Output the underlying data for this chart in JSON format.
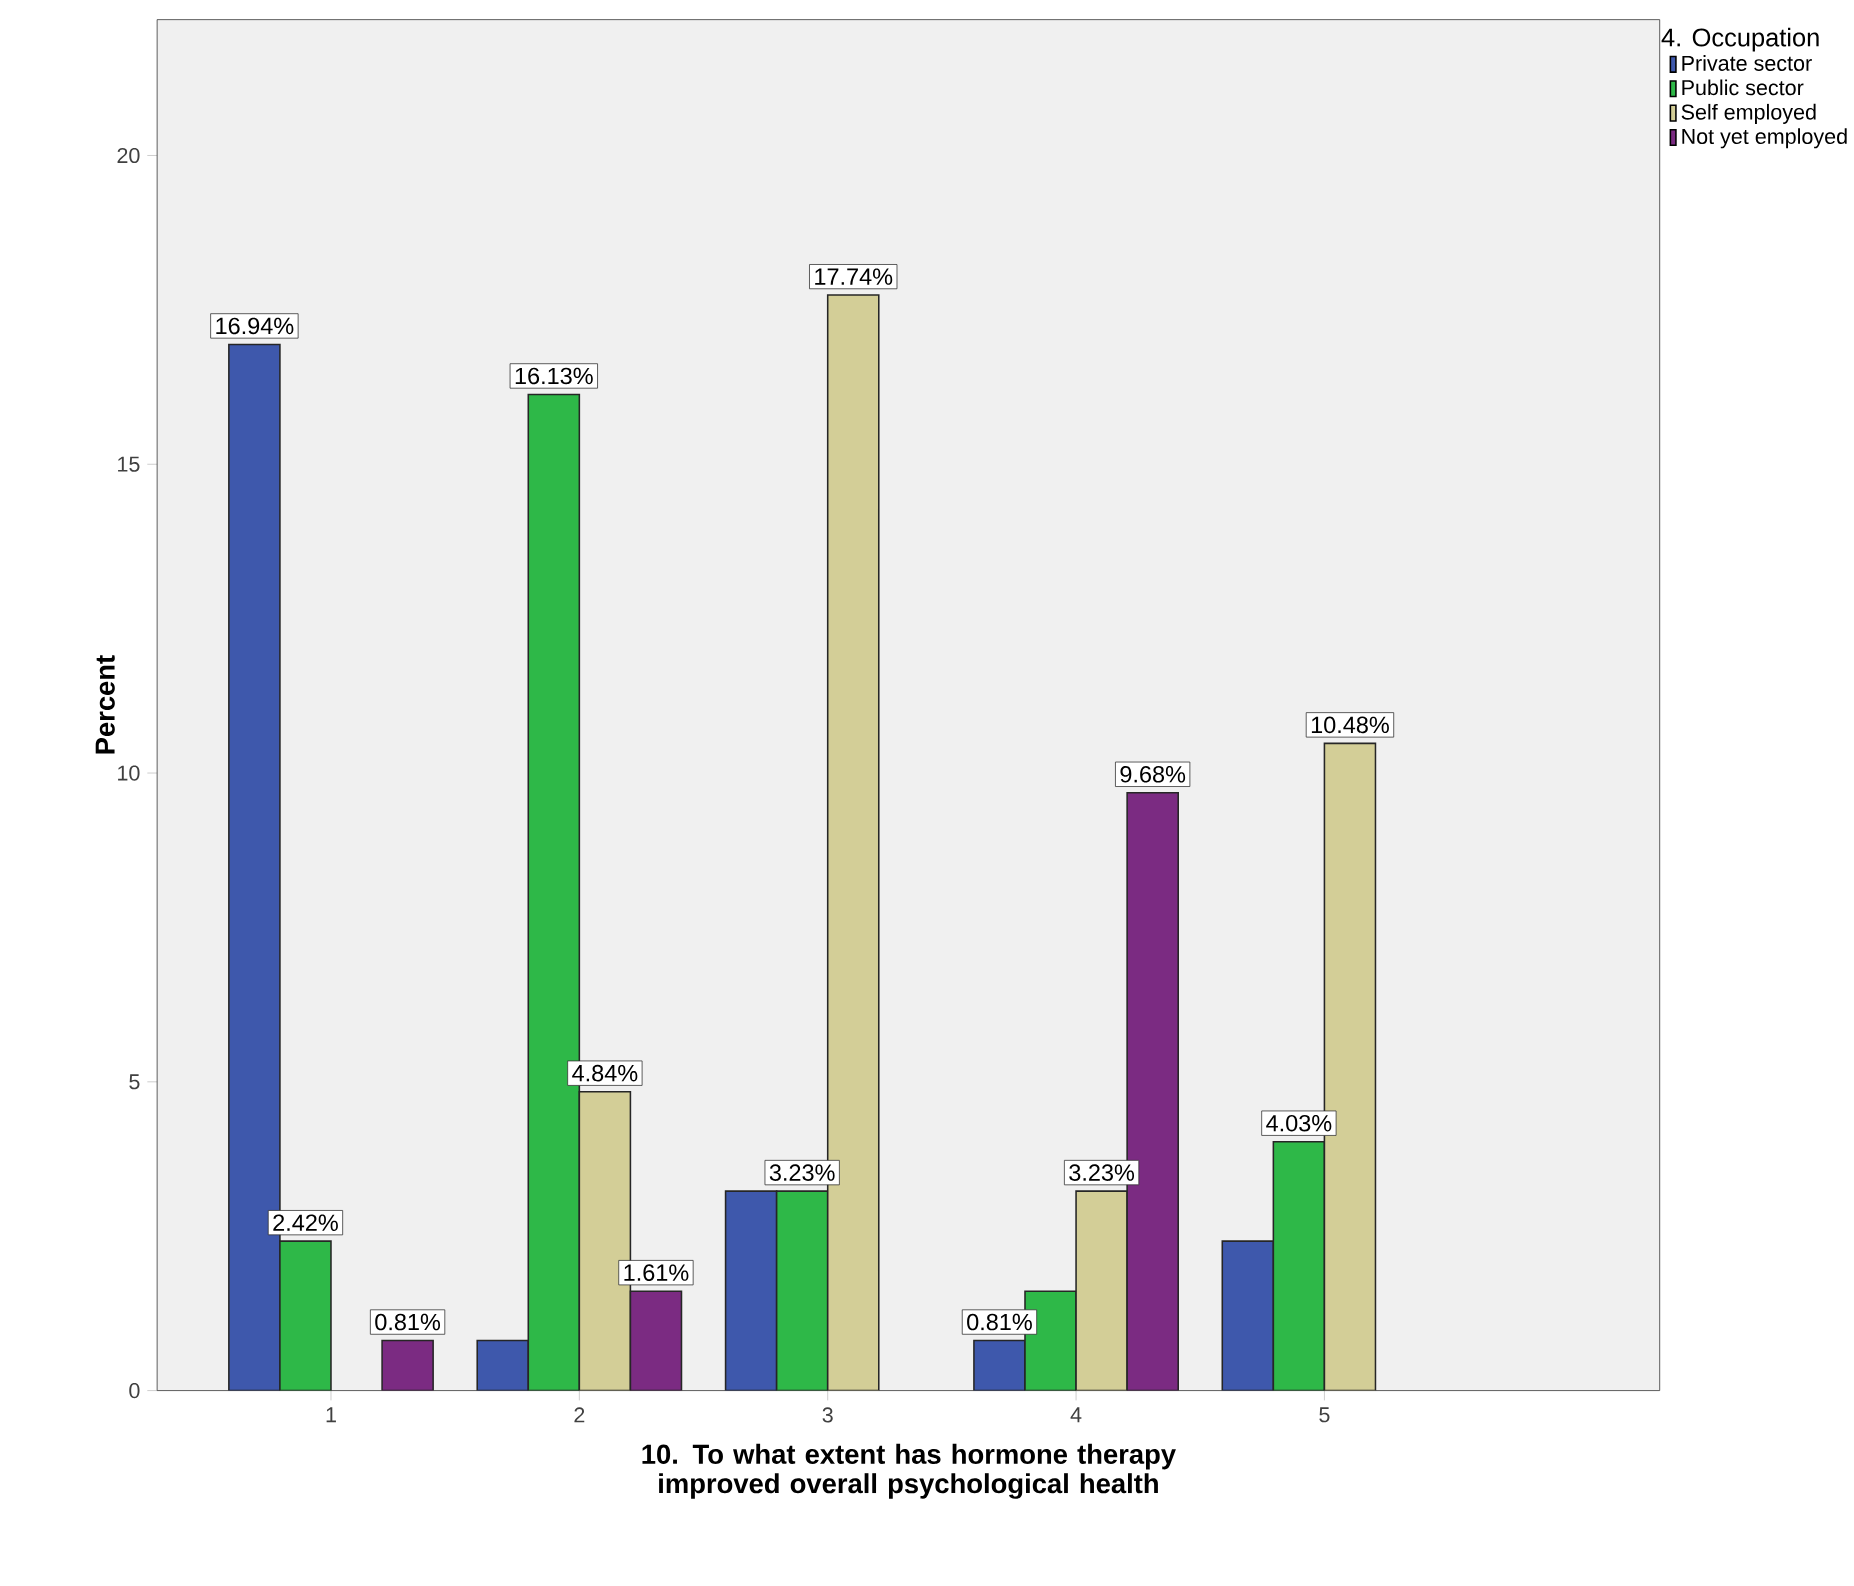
{
  "chart_data": {
    "type": "bar",
    "xlabel": "10. To what extent has hormone therapy improved overall psychological health",
    "ylabel": "Percent",
    "legend_title": "4. Occupation",
    "legend": "top right",
    "categories": [
      "1",
      "2",
      "3",
      "4",
      "5"
    ],
    "ylim": [
      0,
      22.2
    ],
    "yticks": [
      0,
      5,
      10,
      15,
      20
    ],
    "series": [
      {
        "name": "Private sector",
        "color": "#3e58ac",
        "values": [
          16.94,
          0.81,
          3.23,
          0.81,
          2.42
        ],
        "value_labels": [
          "16.94%",
          null,
          null,
          "0.81%",
          null
        ]
      },
      {
        "name": "Public sector",
        "color": "#2eb848",
        "values": [
          2.42,
          16.13,
          3.23,
          1.61,
          4.03
        ],
        "value_labels": [
          "2.42%",
          "16.13%",
          "3.23%",
          null,
          "4.03%"
        ]
      },
      {
        "name": "Self employed",
        "color": "#d3ce97",
        "values": [
          null,
          4.84,
          17.74,
          3.23,
          10.48
        ],
        "value_labels": [
          null,
          "4.84%",
          "17.74%",
          "3.23%",
          "10.48%"
        ]
      },
      {
        "name": "Not yet employed",
        "color": "#7b2b82",
        "values": [
          0.81,
          1.61,
          null,
          9.68,
          null
        ],
        "value_labels": [
          "0.81%",
          "1.61%",
          null,
          "9.68%",
          null
        ]
      }
    ]
  }
}
